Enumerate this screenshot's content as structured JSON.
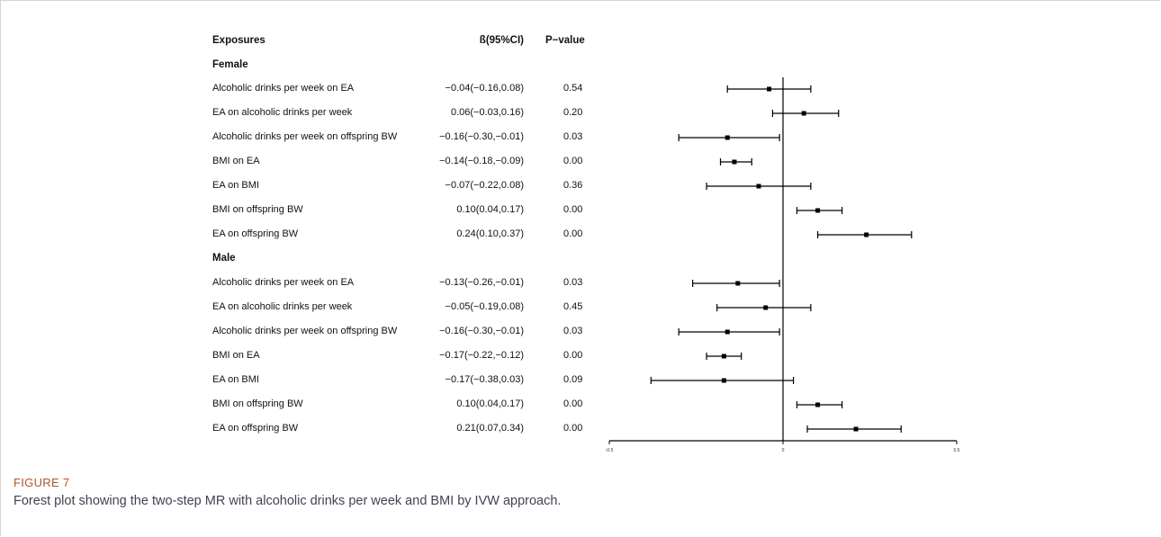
{
  "figure": {
    "label": "FIGURE 7",
    "caption": "Forest plot showing the two-step MR with alcoholic drinks per week and BMI by IVW approach."
  },
  "table": {
    "headers": {
      "exposure": "Exposures",
      "beta": "ß(95%CI)",
      "pvalue": "P−value"
    },
    "groups": [
      {
        "name": "Female",
        "rows": [
          {
            "label": "Alcoholic drinks per week on EA",
            "beta_text": "−0.04(−0.16,0.08)",
            "p": "0.54"
          },
          {
            "label": "EA on alcoholic drinks per week",
            "beta_text": "0.06(−0.03,0.16)",
            "p": "0.20"
          },
          {
            "label": "Alcoholic drinks per week on offspring BW",
            "beta_text": "−0.16(−0.30,−0.01)",
            "p": "0.03"
          },
          {
            "label": "BMI on EA",
            "beta_text": "−0.14(−0.18,−0.09)",
            "p": "0.00"
          },
          {
            "label": "EA on BMI",
            "beta_text": "−0.07(−0.22,0.08)",
            "p": "0.36"
          },
          {
            "label": "BMI on offspring BW",
            "beta_text": "0.10(0.04,0.17)",
            "p": "0.00"
          },
          {
            "label": "EA on offspring BW",
            "beta_text": "0.24(0.10,0.37)",
            "p": "0.00"
          }
        ]
      },
      {
        "name": "Male",
        "rows": [
          {
            "label": "Alcoholic drinks per week on EA",
            "beta_text": "−0.13(−0.26,−0.01)",
            "p": "0.03"
          },
          {
            "label": "EA on alcoholic drinks per week",
            "beta_text": "−0.05(−0.19,0.08)",
            "p": "0.45"
          },
          {
            "label": "Alcoholic drinks per week on offspring BW",
            "beta_text": "−0.16(−0.30,−0.01)",
            "p": "0.03"
          },
          {
            "label": "BMI on EA",
            "beta_text": "−0.17(−0.22,−0.12)",
            "p": "0.00"
          },
          {
            "label": "EA on BMI",
            "beta_text": "−0.17(−0.38,0.03)",
            "p": "0.09"
          },
          {
            "label": "BMI on offspring BW",
            "beta_text": "0.10(0.04,0.17)",
            "p": "0.00"
          },
          {
            "label": "EA on offspring BW",
            "beta_text": "0.21(0.07,0.34)",
            "p": "0.00"
          }
        ]
      }
    ]
  },
  "chart_data": {
    "type": "scatter",
    "subtype": "forest",
    "xlim": [
      -0.5,
      0.5
    ],
    "x_ticks": [
      "-0.5",
      "0",
      "0.5"
    ],
    "reference_line": 0,
    "points": [
      {
        "group": "Female",
        "label": "Alcoholic drinks per week on EA",
        "beta": -0.04,
        "lower": -0.16,
        "upper": 0.08
      },
      {
        "group": "Female",
        "label": "EA on alcoholic drinks per week",
        "beta": 0.06,
        "lower": -0.03,
        "upper": 0.16
      },
      {
        "group": "Female",
        "label": "Alcoholic drinks per week on offspring BW",
        "beta": -0.16,
        "lower": -0.3,
        "upper": -0.01
      },
      {
        "group": "Female",
        "label": "BMI on EA",
        "beta": -0.14,
        "lower": -0.18,
        "upper": -0.09
      },
      {
        "group": "Female",
        "label": "EA on BMI",
        "beta": -0.07,
        "lower": -0.22,
        "upper": 0.08
      },
      {
        "group": "Female",
        "label": "BMI on offspring BW",
        "beta": 0.1,
        "lower": 0.04,
        "upper": 0.17
      },
      {
        "group": "Female",
        "label": "EA on offspring BW",
        "beta": 0.24,
        "lower": 0.1,
        "upper": 0.37
      },
      {
        "group": "Male",
        "label": "Alcoholic drinks per week on EA",
        "beta": -0.13,
        "lower": -0.26,
        "upper": -0.01
      },
      {
        "group": "Male",
        "label": "EA on alcoholic drinks per week",
        "beta": -0.05,
        "lower": -0.19,
        "upper": 0.08
      },
      {
        "group": "Male",
        "label": "Alcoholic drinks per week on offspring BW",
        "beta": -0.16,
        "lower": -0.3,
        "upper": -0.01
      },
      {
        "group": "Male",
        "label": "BMI on EA",
        "beta": -0.17,
        "lower": -0.22,
        "upper": -0.12
      },
      {
        "group": "Male",
        "label": "EA on BMI",
        "beta": -0.17,
        "lower": -0.38,
        "upper": 0.03
      },
      {
        "group": "Male",
        "label": "BMI on offspring BW",
        "beta": 0.1,
        "lower": 0.04,
        "upper": 0.17
      },
      {
        "group": "Male",
        "label": "EA on offspring BW",
        "beta": 0.21,
        "lower": 0.07,
        "upper": 0.34
      }
    ],
    "grid": false
  }
}
